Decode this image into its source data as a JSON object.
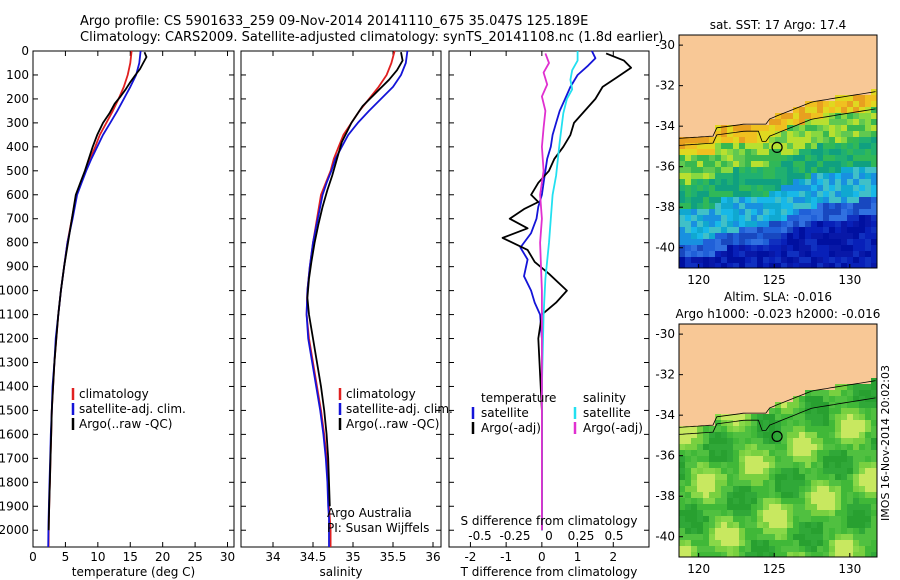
{
  "header": {
    "line1": "Argo profile: CS 5901633_259 09-Nov-2014 20141110_675 35.047S 125.189E",
    "line2": "Climatology: CARS2009. Satellite-adjusted climatology: synTS_20141108.nc (1.8d earlier)"
  },
  "side_stamp": "IMOS 16-Nov-2014 20:02:03",
  "colors": {
    "climatology": "#e02020",
    "satellite_adj": "#1414d8",
    "argo": "#000000",
    "satellite_salinity": "#22e0f0",
    "argo_salinity": "#e030d0",
    "land": "#f8c896"
  },
  "chart_data": [
    {
      "type": "line",
      "panel": "temperature",
      "xlabel": "temperature (deg C)",
      "ylabel": "",
      "xlim": [
        0,
        31
      ],
      "ylim": [
        2070,
        0
      ],
      "y_inverted": true,
      "xticks": [
        0,
        5,
        10,
        15,
        20,
        25,
        30
      ],
      "yticks": [
        0,
        100,
        200,
        300,
        400,
        500,
        600,
        700,
        800,
        900,
        1000,
        1100,
        1200,
        1300,
        1400,
        1500,
        1600,
        1700,
        1800,
        1900,
        2000
      ],
      "legend": {
        "items": [
          "climatology",
          "satellite-adj. clim.",
          "Argo(..raw -QC)"
        ],
        "placement": "lower-center"
      },
      "series": [
        {
          "name": "climatology",
          "color": "#e02020",
          "x": [
            15.2,
            15.0,
            14.6,
            14.0,
            13.2,
            12.3,
            11.3,
            10.3,
            9.6,
            8.8,
            8.1,
            7.4,
            6.7,
            6.0,
            5.3,
            4.8,
            4.3,
            3.9,
            3.6,
            3.3,
            3.1,
            2.9,
            2.8,
            2.7,
            2.6,
            2.55,
            2.5,
            2.45,
            2.42,
            2.4
          ],
          "y": [
            0,
            50,
            100,
            150,
            200,
            250,
            300,
            350,
            400,
            450,
            500,
            550,
            600,
            700,
            800,
            900,
            1000,
            1100,
            1200,
            1300,
            1400,
            1500,
            1600,
            1700,
            1800,
            1850,
            1900,
            1950,
            2000,
            2070
          ]
        },
        {
          "name": "satellite-adj. clim.",
          "color": "#1414d8",
          "x": [
            16.6,
            16.4,
            15.9,
            15.0,
            14.0,
            13.0,
            11.9,
            10.8,
            9.9,
            9.0,
            8.2,
            7.5,
            6.8,
            6.1,
            5.3,
            4.8,
            4.3,
            3.9,
            3.5,
            3.3,
            3.0,
            2.9,
            2.75,
            2.65,
            2.55,
            2.5,
            2.45,
            2.4,
            2.38,
            2.35
          ],
          "y": [
            0,
            50,
            100,
            150,
            200,
            250,
            300,
            350,
            400,
            450,
            500,
            550,
            600,
            700,
            800,
            900,
            1000,
            1100,
            1200,
            1300,
            1400,
            1500,
            1600,
            1700,
            1800,
            1850,
            1900,
            1950,
            2000,
            2070
          ]
        },
        {
          "name": "Argo(..raw -QC)",
          "color": "#000000",
          "x": [
            17.2,
            17.5,
            17.0,
            16.5,
            15.8,
            15.0,
            14.3,
            13.5,
            12.6,
            11.8,
            10.8,
            9.9,
            9.2,
            8.6,
            8.0,
            7.3,
            6.6,
            6.0,
            5.4,
            4.8,
            4.3,
            3.9,
            3.6,
            3.3,
            3.1,
            2.9,
            2.8,
            2.7,
            2.6,
            2.55,
            2.5,
            2.45,
            2.42
          ],
          "y": [
            5,
            25,
            50,
            75,
            100,
            130,
            160,
            190,
            220,
            260,
            300,
            350,
            400,
            450,
            500,
            550,
            600,
            700,
            800,
            900,
            1000,
            1100,
            1200,
            1300,
            1400,
            1500,
            1600,
            1700,
            1800,
            1850,
            1900,
            1950,
            2000
          ]
        }
      ]
    },
    {
      "type": "line",
      "panel": "salinity",
      "xlabel": "salinity",
      "ylabel": "",
      "xlim": [
        33.6,
        36.1
      ],
      "ylim": [
        2070,
        0
      ],
      "y_inverted": true,
      "xticks": [
        34,
        34.5,
        35,
        35.5,
        36
      ],
      "legend": {
        "items": [
          "climatology",
          "satellite-adj. clim.",
          "Argo(..raw -QC)"
        ],
        "placement": "lower-center"
      },
      "annotations": [
        "Argo Australia",
        "PI: Susan Wijffels"
      ],
      "series": [
        {
          "name": "climatology",
          "color": "#e02020",
          "x": [
            35.52,
            35.48,
            35.42,
            35.32,
            35.2,
            35.08,
            34.98,
            34.88,
            34.82,
            34.76,
            34.72,
            34.66,
            34.6,
            34.55,
            34.5,
            34.46,
            34.43,
            34.42,
            34.45,
            34.5,
            34.55,
            34.6,
            34.64,
            34.67,
            34.69,
            34.7,
            34.71,
            34.72,
            34.72
          ],
          "y": [
            0,
            50,
            100,
            150,
            200,
            250,
            300,
            350,
            400,
            450,
            500,
            550,
            600,
            700,
            800,
            900,
            1000,
            1100,
            1200,
            1300,
            1400,
            1500,
            1600,
            1700,
            1800,
            1900,
            1950,
            2000,
            2070
          ]
        },
        {
          "name": "satellite-adj. clim.",
          "color": "#1414d8",
          "x": [
            35.68,
            35.66,
            35.6,
            35.5,
            35.35,
            35.2,
            35.06,
            34.94,
            34.86,
            34.78,
            34.73,
            34.67,
            34.62,
            34.56,
            34.5,
            34.46,
            34.43,
            34.42,
            34.44,
            34.49,
            34.54,
            34.59,
            34.63,
            34.66,
            34.68,
            34.69,
            34.7,
            34.7,
            34.7
          ],
          "y": [
            0,
            50,
            100,
            150,
            200,
            250,
            300,
            350,
            400,
            450,
            500,
            550,
            600,
            700,
            800,
            900,
            1000,
            1100,
            1200,
            1300,
            1400,
            1500,
            1600,
            1700,
            1800,
            1900,
            1950,
            2000,
            2070
          ]
        },
        {
          "name": "Argo(..raw -QC)",
          "color": "#000000",
          "x": [
            35.6,
            35.62,
            35.55,
            35.45,
            35.3,
            35.12,
            34.98,
            34.86,
            34.8,
            34.74,
            34.68,
            34.62,
            34.57,
            34.52,
            34.48,
            34.45,
            34.43,
            34.45,
            34.5,
            34.55,
            34.6,
            34.64,
            34.67,
            34.69,
            34.7,
            34.71
          ],
          "y": [
            5,
            40,
            80,
            120,
            170,
            230,
            300,
            380,
            450,
            520,
            580,
            650,
            720,
            800,
            880,
            950,
            1030,
            1100,
            1200,
            1300,
            1400,
            1500,
            1600,
            1700,
            1800,
            1900
          ]
        }
      ]
    },
    {
      "type": "line",
      "panel": "difference",
      "xlabel": "T difference from climatology",
      "xlabel_top": "S difference from climatology",
      "xlim": [
        -2.6,
        3.0
      ],
      "xticks": [
        -2,
        -1,
        0,
        1,
        2
      ],
      "xticks_salinity": [
        "-0.5",
        "-0.25",
        "0",
        "0.25",
        "0.5"
      ],
      "ylim": [
        2070,
        0
      ],
      "y_inverted": true,
      "legend": {
        "temperature_header": "temperature",
        "salinity_header": "salinity",
        "items": [
          "satellite",
          "Argo(-adj)",
          "satellite",
          "Argo(-adj)"
        ],
        "placement": "lower-center"
      },
      "series": [
        {
          "name": "temperature satellite",
          "color": "#1414d8",
          "x": [
            1.4,
            1.5,
            1.3,
            1.0,
            0.8,
            0.65,
            0.5,
            0.4,
            0.3,
            0.25,
            0.15,
            0.1,
            0.05,
            0.0,
            -0.1,
            -0.15,
            -0.3,
            -0.6,
            -0.4,
            -0.5,
            -0.3,
            -0.2,
            -0.05,
            0.0,
            0.0,
            0.0
          ],
          "y": [
            0,
            30,
            60,
            100,
            150,
            200,
            250,
            300,
            350,
            400,
            450,
            500,
            550,
            600,
            650,
            700,
            760,
            820,
            870,
            940,
            1000,
            1050,
            1100,
            1200,
            1500,
            2000
          ]
        },
        {
          "name": "temperature Argo(-adj)",
          "color": "#000000",
          "x": [
            1.8,
            2.3,
            2.5,
            2.1,
            1.7,
            1.5,
            1.2,
            0.9,
            0.8,
            0.6,
            0.35,
            0.2,
            -0.1,
            -0.3,
            -0.1,
            -0.5,
            -0.9,
            -0.4,
            -1.1,
            -0.4,
            -0.2,
            0.2,
            0.7,
            0.4,
            0.0,
            -0.1,
            0.0,
            0.0
          ],
          "y": [
            10,
            40,
            70,
            110,
            150,
            200,
            250,
            300,
            350,
            400,
            450,
            500,
            550,
            600,
            630,
            660,
            700,
            740,
            780,
            830,
            880,
            930,
            1000,
            1050,
            1100,
            1200,
            1500,
            2000
          ]
        },
        {
          "name": "salinity satellite",
          "color": "#22e0f0",
          "x": [
            1.0,
            1.0,
            0.85,
            0.8,
            0.85,
            0.7,
            0.6,
            0.55,
            0.5,
            0.45,
            0.4,
            0.3,
            0.25,
            0.2,
            0.1,
            0.05,
            0.0,
            0.0
          ],
          "y": [
            0,
            40,
            80,
            120,
            160,
            200,
            260,
            320,
            380,
            450,
            520,
            600,
            700,
            800,
            950,
            1100,
            1400,
            2000
          ]
        },
        {
          "name": "salinity Argo(-adj)",
          "color": "#e030d0",
          "x": [
            0.1,
            0.2,
            0.05,
            0.15,
            0.0,
            0.1,
            0.05,
            0.0,
            0.05,
            -0.05,
            0.0,
            -0.05,
            0.0,
            0.0,
            0.0
          ],
          "y": [
            10,
            50,
            90,
            140,
            190,
            250,
            320,
            400,
            500,
            600,
            700,
            800,
            1000,
            1300,
            2000
          ]
        }
      ]
    },
    {
      "type": "heatmap",
      "panel": "map-sst",
      "title": "sat. SST: 17 Argo: 17.4",
      "xticks": [
        120,
        125,
        130
      ],
      "yticks": [
        -30,
        -32,
        -34,
        -36,
        -38,
        -40
      ],
      "xlim": [
        118.7,
        131.8
      ],
      "ylim": [
        -41,
        -29.5
      ],
      "marker": {
        "lon": 125.189,
        "lat": -35.047
      }
    },
    {
      "type": "heatmap",
      "panel": "map-sla",
      "title": "Altim. SLA: -0.016",
      "subtitle": "Argo h1000: -0.023 h2000: -0.016",
      "xticks": [
        120,
        125,
        130
      ],
      "yticks": [
        -30,
        -32,
        -34,
        -36,
        -38,
        -40
      ],
      "xlim": [
        118.7,
        131.8
      ],
      "ylim": [
        -41,
        -29.5
      ],
      "marker": {
        "lon": 125.189,
        "lat": -35.047
      }
    }
  ]
}
